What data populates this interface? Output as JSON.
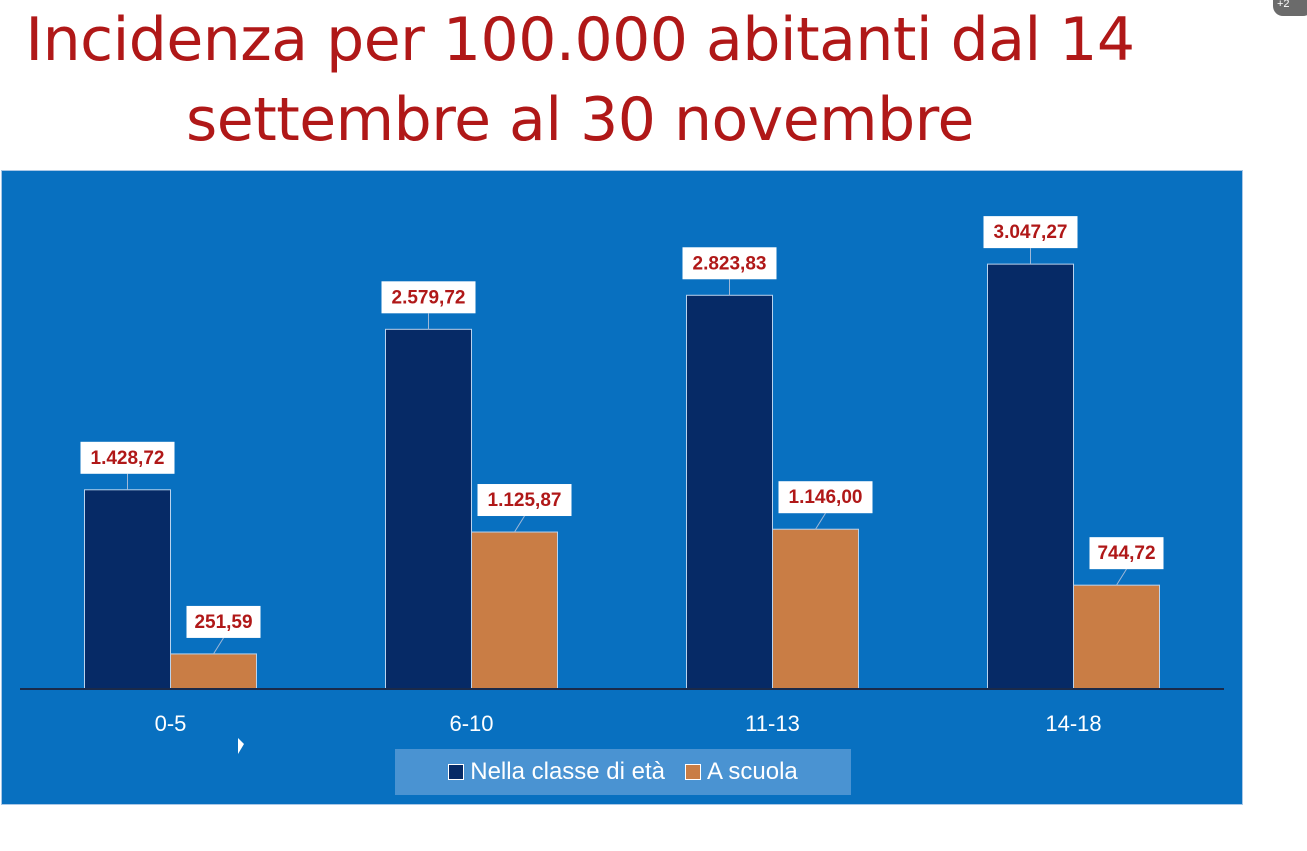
{
  "title_lines": [
    "Incidenza per 100.000 abitanti dal 14",
    "settembre al 30 novembre"
  ],
  "badge": "+2",
  "colors": {
    "title": "#b01818",
    "background": "#0870c0",
    "series_1": "#062a66",
    "series_2": "#c97d45",
    "label_text": "#b01818"
  },
  "chart_data": {
    "type": "bar",
    "title": "Incidenza per 100.000 abitanti dal 14 settembre al 30 novembre",
    "xlabel": "",
    "ylabel": "",
    "categories": [
      "0-5",
      "6-10",
      "11-13",
      "14-18"
    ],
    "series": [
      {
        "name": "Nella classe di età",
        "values": [
          1428.72,
          2579.72,
          2823.83,
          3047.27
        ],
        "labels": [
          "1.428,72",
          "2.579,72",
          "2.823,83",
          "3.047,27"
        ]
      },
      {
        "name": "A scuola",
        "values": [
          251.59,
          1125.87,
          1146.0,
          744.72
        ],
        "labels": [
          "251,59",
          "1.125,87",
          "1.146,00",
          "744,72"
        ]
      }
    ],
    "ylim": [
      0,
      3500
    ],
    "grid": false,
    "legend_position": "bottom"
  }
}
